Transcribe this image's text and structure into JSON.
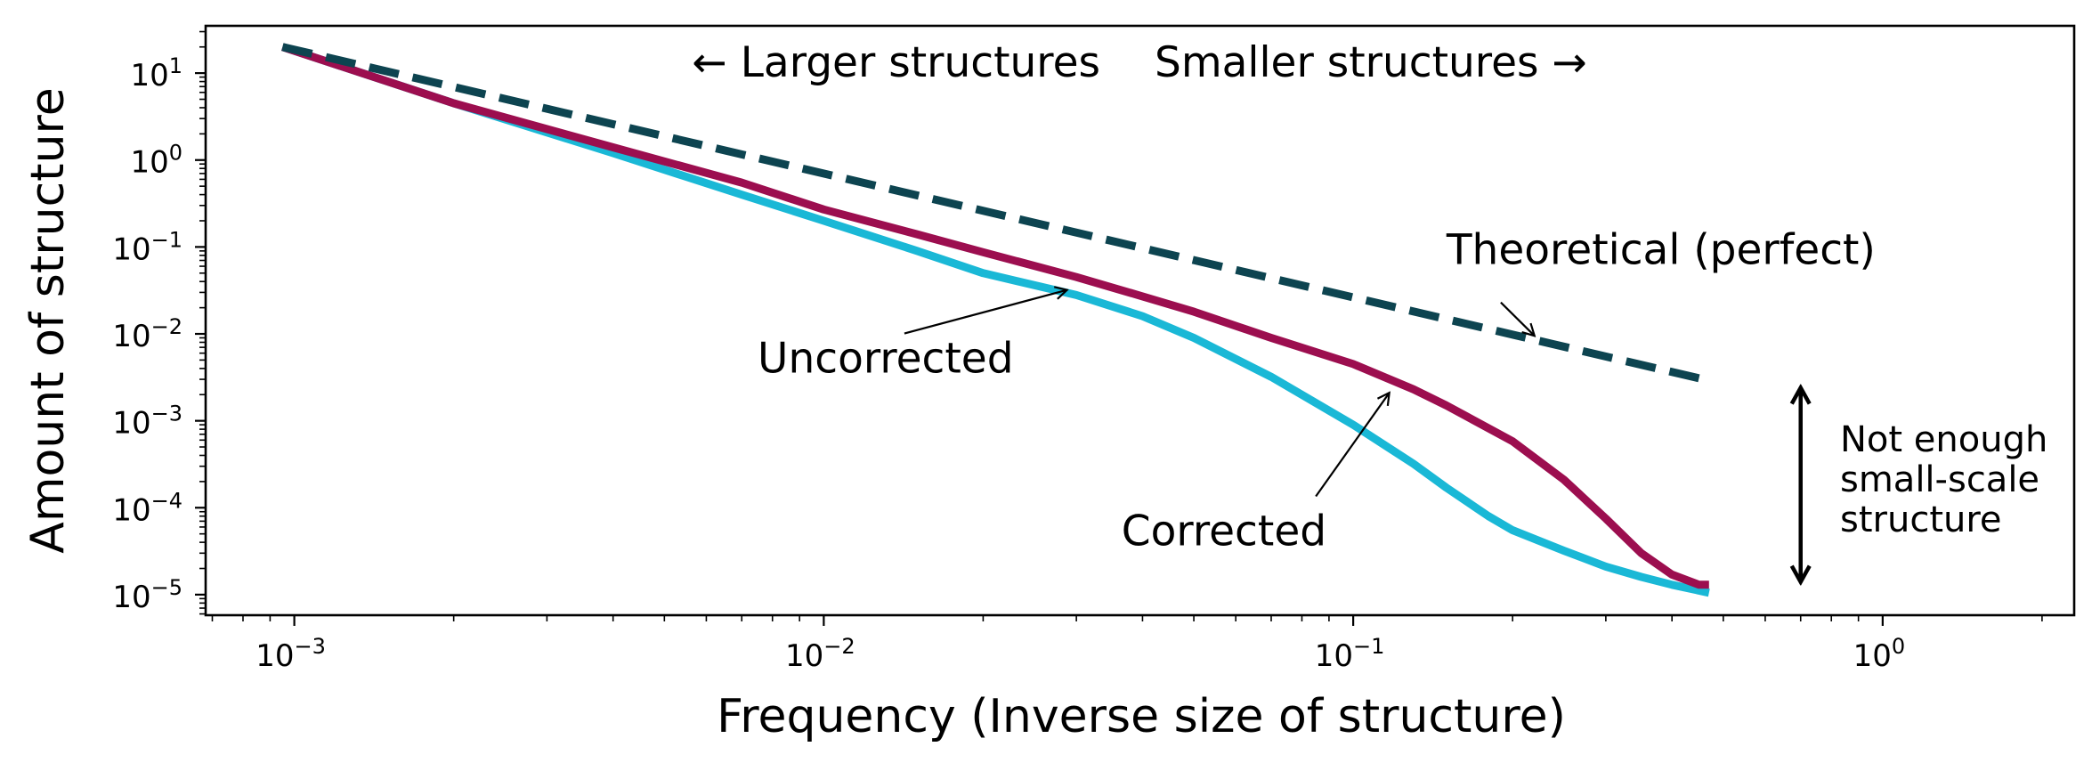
{
  "chart_data": {
    "type": "line",
    "title": "",
    "xlabel": "Frequency (Inverse size of structure)",
    "ylabel": "Amount of structure",
    "xscale": "log",
    "yscale": "log",
    "xlim": [
      0.00068,
      2.3
    ],
    "ylim": [
      5.8e-06,
      35
    ],
    "grid": false,
    "x_ticks": [
      {
        "value": 0.001,
        "base": "10",
        "exp": "−3"
      },
      {
        "value": 0.01,
        "base": "10",
        "exp": "−2"
      },
      {
        "value": 0.1,
        "base": "10",
        "exp": "−1"
      },
      {
        "value": 1,
        "base": "10",
        "exp": "0"
      }
    ],
    "y_ticks": [
      {
        "value": 10,
        "base": "10",
        "exp": "1"
      },
      {
        "value": 1,
        "base": "10",
        "exp": "0"
      },
      {
        "value": 0.1,
        "base": "10",
        "exp": "−1"
      },
      {
        "value": 0.01,
        "base": "10",
        "exp": "−2"
      },
      {
        "value": 0.001,
        "base": "10",
        "exp": "−3"
      },
      {
        "value": 0.0001,
        "base": "10",
        "exp": "−4"
      },
      {
        "value": 1e-05,
        "base": "10",
        "exp": "−5"
      }
    ],
    "series": [
      {
        "color": "#1ab8d6",
        "dash": "solid",
        "x": [
          0.00095,
          0.002,
          0.004,
          0.007,
          0.01,
          0.015,
          0.02,
          0.03,
          0.04,
          0.05,
          0.07,
          0.1,
          0.13,
          0.15,
          0.18,
          0.2,
          0.25,
          0.3,
          0.35,
          0.4,
          0.47
        ],
        "y": [
          20,
          4.5,
          1.2,
          0.4,
          0.2,
          0.09,
          0.05,
          0.028,
          0.016,
          0.009,
          0.0032,
          0.0009,
          0.00032,
          0.00017,
          8e-05,
          5.5e-05,
          3.2e-05,
          2.1e-05,
          1.6e-05,
          1.3e-05,
          1.05e-05
        ]
      },
      {
        "color": "#9c0e4f",
        "dash": "solid",
        "x": [
          0.00095,
          0.002,
          0.004,
          0.007,
          0.01,
          0.015,
          0.02,
          0.03,
          0.04,
          0.05,
          0.07,
          0.1,
          0.13,
          0.15,
          0.2,
          0.25,
          0.3,
          0.35,
          0.4,
          0.45,
          0.47
        ],
        "y": [
          20,
          4.5,
          1.4,
          0.55,
          0.27,
          0.14,
          0.087,
          0.045,
          0.027,
          0.018,
          0.009,
          0.0045,
          0.0023,
          0.0015,
          0.00058,
          0.00021,
          7.5e-05,
          3e-05,
          1.7e-05,
          1.3e-05,
          1.3e-05
        ]
      },
      {
        "color": "#0d4450",
        "dash": "dashed",
        "x": [
          0.00095,
          0.47
        ],
        "y": [
          20,
          0.0029
        ]
      }
    ],
    "annotations": [
      {
        "text": "Theoretical (perfect)",
        "x": 0.15,
        "y": 0.064,
        "ax": 0.19,
        "ay": 0.023,
        "hx": 0.22,
        "hy": 0.0095
      },
      {
        "text": "Uncorrected",
        "x": 0.0075,
        "y": 0.0036,
        "ax": 0.0142,
        "ay": 0.0101,
        "hx": 0.0288,
        "hy": 0.032
      },
      {
        "text": "Corrected",
        "x": 0.0365,
        "y": 3.7e-05,
        "ax": 0.085,
        "ay": 0.000135,
        "hx": 0.117,
        "hy": 0.0021
      }
    ],
    "direction_labels": {
      "left": "← Larger structures",
      "right": "Smaller structures →"
    },
    "side_note": {
      "lines": [
        "Not enough",
        "small-scale",
        "structure"
      ],
      "arrow_x": 0.7,
      "arrow_from": 1.4e-05,
      "arrow_to": 0.0024
    }
  }
}
